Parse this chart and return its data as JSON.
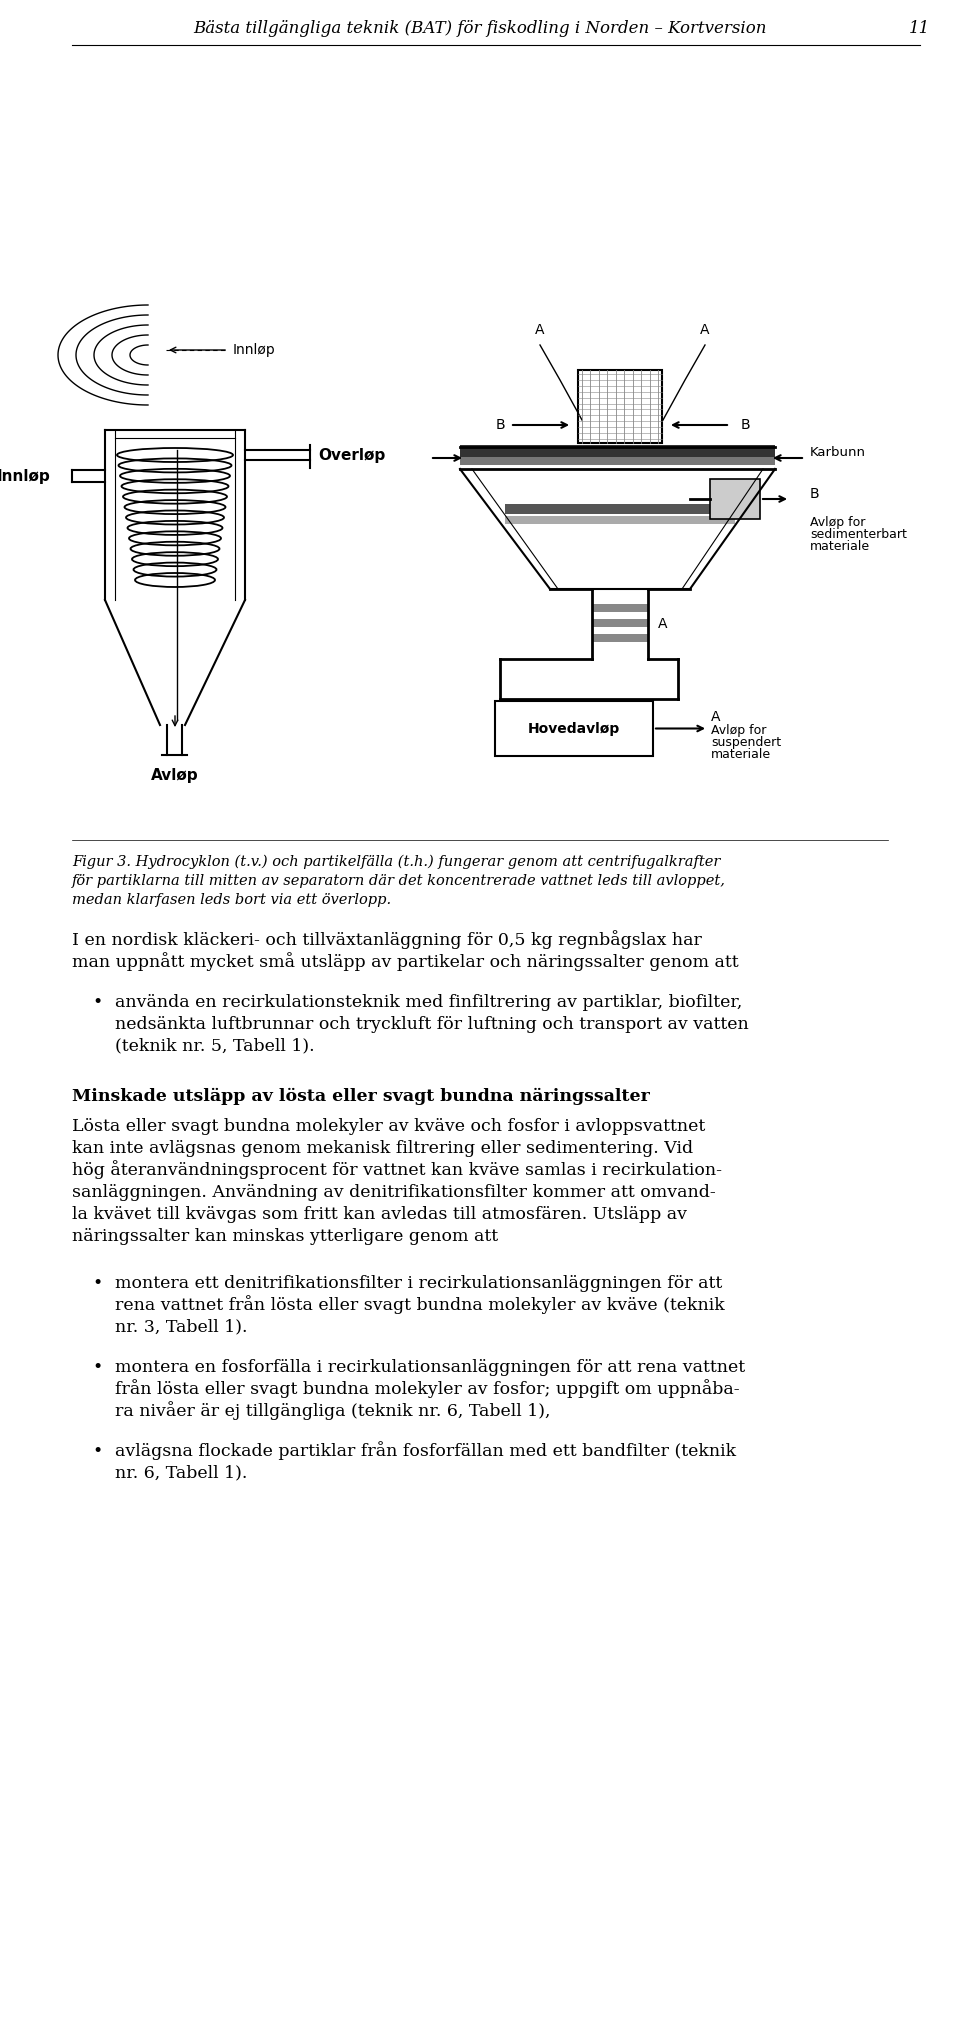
{
  "header_text": "Bästa tillgängliga teknik (BAT) för fiskodling i Norden – Kortversion",
  "header_page": "11",
  "fig_caption_line1": "Figur 3. Hydrocyklon (t.v.) och partikelfälla (t.h.) fungerar genom att centrifugalkrafter",
  "fig_caption_line2": "för partiklarna till mitten av separatorn där det koncentrerade vattnet leds till avloppet,",
  "fig_caption_line3": "medan klarfasen leds bort via ett överlopp.",
  "body1_line1": "I en nordisk kläckeri- och tillväxtanläggning för 0,5 kg regnbågslax har",
  "body1_line2": "man uppnått mycket små utsläpp av partikelar och näringssalter genom att",
  "b1_line1": "använda en recirkulationsteknik med finfiltrering av partiklar, biofilter,",
  "b1_line2": "nedsänkta luftbrunnar och tryckluft för luftning och transport av vatten",
  "b1_line3": "(teknik nr. 5, Tabell 1).",
  "heading2": "Minskade utsläpp av lösta eller svagt bundna näringssalter",
  "body3_line1": "Lösta eller svagt bundna molekyler av kväve och fosfor i avloppsvattnet",
  "body3_line2": "kan inte avlägsnas genom mekanisk filtrering eller sedimentering. Vid",
  "body3_line3": "hög återanvändningsprocent för vattnet kan kväve samlas i recirkulation-",
  "body3_line4": "sanläggningen. Användning av denitrifikationsfilter kommer att omvand-",
  "body3_line5": "la kvävet till kvävgas som fritt kan avledas till atmosfären. Utsläpp av",
  "body3_line6": "näringssalter kan minskas ytterligare genom att",
  "b2_line1": "montera ett denitrifikationsfilter i recirkulationsanläggningen för att",
  "b2_line2": "rena vattnet från lösta eller svagt bundna molekyler av kväve (teknik",
  "b2_line3": "nr. 3, Tabell 1).",
  "b3_line1": "montera en fosforfälla i recirkulationsanläggningen för att rena vattnet",
  "b3_line2": "från lösta eller svagt bundna molekyler av fosfor; uppgift om uppnåba-",
  "b3_line3": "ra nivåer är ej tillgängliga (teknik nr. 6, Tabell 1),",
  "b4_line1": "avlägsna flockade partiklar från fosforfällan med ett bandfilter (teknik",
  "b4_line2": "nr. 6, Tabell 1).",
  "bg_color": "#ffffff",
  "text_color": "#000000"
}
